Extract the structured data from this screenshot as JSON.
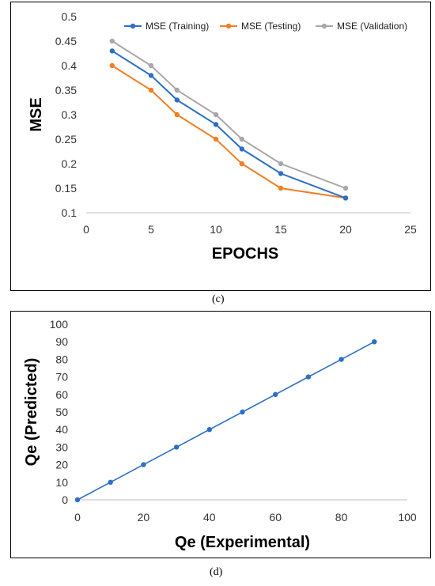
{
  "chart_data": [
    {
      "type": "line",
      "title": "",
      "xlabel": "EPOCHS",
      "ylabel": "MSE",
      "xlim": [
        0,
        25
      ],
      "ylim": [
        0.1,
        0.5
      ],
      "xticks": [
        0,
        5,
        10,
        15,
        20,
        25
      ],
      "yticks": [
        0.1,
        0.15,
        0.2,
        0.25,
        0.3,
        0.35,
        0.4,
        0.45,
        0.5
      ],
      "ytick_labels": [
        "0.1",
        "0.15",
        "0.2",
        "0.25",
        "0.3",
        "0.35",
        "0.4",
        "0.45",
        "0.5"
      ],
      "x": [
        2,
        5,
        7,
        10,
        12,
        15,
        20
      ],
      "series": [
        {
          "name": "MSE (Training)",
          "color": "#2e6fc4",
          "values": [
            0.43,
            0.38,
            0.33,
            0.28,
            0.23,
            0.18,
            0.13
          ]
        },
        {
          "name": "MSE (Testing)",
          "color": "#f07f24",
          "values": [
            0.4,
            0.35,
            0.3,
            0.25,
            0.2,
            0.15,
            0.13
          ]
        },
        {
          "name": "MSE (Validation)",
          "color": "#a8a8a8",
          "values": [
            0.45,
            0.4,
            0.35,
            0.3,
            0.25,
            0.2,
            0.15
          ]
        }
      ],
      "legend": "top",
      "grid": false,
      "caption": "(c)"
    },
    {
      "type": "scatter",
      "title": "",
      "xlabel": "Qe (Experimental)",
      "ylabel": "Qe (Predicted)",
      "xlim": [
        0,
        100
      ],
      "ylim": [
        0,
        100
      ],
      "xticks": [
        0,
        20,
        40,
        60,
        80,
        100
      ],
      "yticks": [
        0,
        10,
        20,
        30,
        40,
        50,
        60,
        70,
        80,
        90,
        100
      ],
      "x": [
        0,
        10,
        20,
        30,
        40,
        50,
        60,
        70,
        80,
        90
      ],
      "series": [
        {
          "color": "#2e6fc4",
          "values": [
            0,
            10,
            20,
            30,
            40,
            50,
            60,
            70,
            80,
            90
          ]
        }
      ],
      "line_connected": true,
      "grid": false,
      "caption": "(d)"
    }
  ]
}
